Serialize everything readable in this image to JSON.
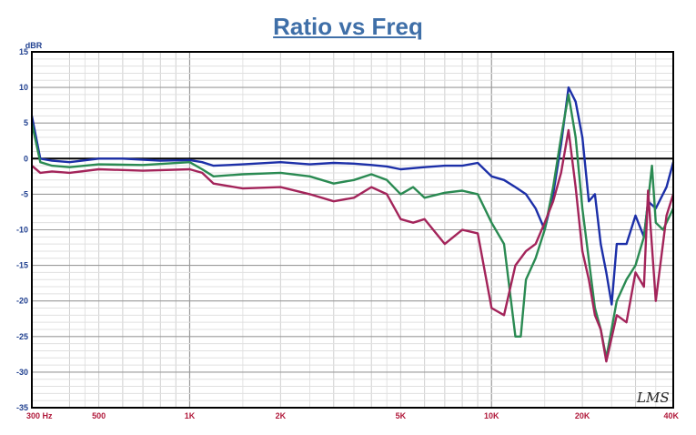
{
  "chart_data": {
    "type": "line",
    "title": "Ratio vs Freq",
    "ylabel": "dBR",
    "xlabel": "",
    "xscale": "log",
    "xlim": [
      300,
      40000
    ],
    "ylim": [
      -35,
      15
    ],
    "yticks": [
      15,
      10,
      5,
      0,
      -5,
      -10,
      -15,
      -20,
      -25,
      -30,
      -35
    ],
    "xticks": [
      {
        "value": 300,
        "label": "300  Hz"
      },
      {
        "value": 500,
        "label": "500"
      },
      {
        "value": 1000,
        "label": "1K"
      },
      {
        "value": 2000,
        "label": "2K"
      },
      {
        "value": 5000,
        "label": "5K"
      },
      {
        "value": 10000,
        "label": "10K"
      },
      {
        "value": 20000,
        "label": "20K"
      },
      {
        "value": 40000,
        "label": "40K"
      }
    ],
    "grid": true,
    "watermark": "LMS",
    "series": [
      {
        "color": "#1c2fa8",
        "points": [
          [
            300,
            6
          ],
          [
            320,
            0
          ],
          [
            350,
            -0.3
          ],
          [
            400,
            -0.5
          ],
          [
            500,
            0
          ],
          [
            600,
            0
          ],
          [
            800,
            -0.3
          ],
          [
            1000,
            -0.2
          ],
          [
            1100,
            -0.5
          ],
          [
            1200,
            -1
          ],
          [
            1500,
            -0.8
          ],
          [
            2000,
            -0.5
          ],
          [
            2500,
            -0.8
          ],
          [
            3000,
            -0.6
          ],
          [
            3500,
            -0.7
          ],
          [
            4000,
            -0.9
          ],
          [
            4500,
            -1.1
          ],
          [
            5000,
            -1.5
          ],
          [
            6000,
            -1.2
          ],
          [
            7000,
            -1
          ],
          [
            8000,
            -1
          ],
          [
            9000,
            -0.6
          ],
          [
            10000,
            -2.5
          ],
          [
            11000,
            -3
          ],
          [
            12000,
            -4
          ],
          [
            13000,
            -5
          ],
          [
            14000,
            -7
          ],
          [
            15000,
            -10
          ],
          [
            16000,
            -5
          ],
          [
            17000,
            2
          ],
          [
            18000,
            10
          ],
          [
            19000,
            8
          ],
          [
            20000,
            3
          ],
          [
            21000,
            -6
          ],
          [
            22000,
            -5
          ],
          [
            23000,
            -12
          ],
          [
            24000,
            -16
          ],
          [
            25000,
            -20.5
          ],
          [
            26000,
            -12
          ],
          [
            28000,
            -12
          ],
          [
            30000,
            -8
          ],
          [
            32000,
            -11
          ],
          [
            33000,
            -6
          ],
          [
            35000,
            -7
          ],
          [
            38000,
            -4
          ],
          [
            40000,
            -0.5
          ]
        ]
      },
      {
        "color": "#2a8a52",
        "points": [
          [
            300,
            5
          ],
          [
            320,
            -0.5
          ],
          [
            350,
            -1
          ],
          [
            400,
            -1.2
          ],
          [
            500,
            -0.8
          ],
          [
            700,
            -0.9
          ],
          [
            1000,
            -0.5
          ],
          [
            1100,
            -1.5
          ],
          [
            1200,
            -2.5
          ],
          [
            1500,
            -2.2
          ],
          [
            2000,
            -2
          ],
          [
            2500,
            -2.5
          ],
          [
            3000,
            -3.5
          ],
          [
            3500,
            -3
          ],
          [
            4000,
            -2.2
          ],
          [
            4500,
            -3
          ],
          [
            5000,
            -5
          ],
          [
            5500,
            -4
          ],
          [
            6000,
            -5.5
          ],
          [
            7000,
            -4.8
          ],
          [
            8000,
            -4.5
          ],
          [
            9000,
            -5
          ],
          [
            10000,
            -9
          ],
          [
            11000,
            -12
          ],
          [
            12000,
            -25
          ],
          [
            12500,
            -25
          ],
          [
            13000,
            -17
          ],
          [
            14000,
            -14
          ],
          [
            15000,
            -10
          ],
          [
            16000,
            -4
          ],
          [
            17000,
            3
          ],
          [
            18000,
            9
          ],
          [
            19000,
            3
          ],
          [
            20000,
            -7
          ],
          [
            22000,
            -21
          ],
          [
            23000,
            -24
          ],
          [
            24000,
            -28
          ],
          [
            26000,
            -20
          ],
          [
            28000,
            -17
          ],
          [
            30000,
            -15
          ],
          [
            32000,
            -11
          ],
          [
            33000,
            -6
          ],
          [
            34000,
            -1
          ],
          [
            35000,
            -9
          ],
          [
            37000,
            -10
          ],
          [
            40000,
            -7
          ]
        ]
      },
      {
        "color": "#a3245a",
        "points": [
          [
            300,
            -1
          ],
          [
            320,
            -2
          ],
          [
            350,
            -1.8
          ],
          [
            400,
            -2
          ],
          [
            500,
            -1.5
          ],
          [
            700,
            -1.7
          ],
          [
            1000,
            -1.5
          ],
          [
            1100,
            -2
          ],
          [
            1200,
            -3.5
          ],
          [
            1500,
            -4.2
          ],
          [
            2000,
            -4
          ],
          [
            2500,
            -5
          ],
          [
            3000,
            -6
          ],
          [
            3500,
            -5.5
          ],
          [
            4000,
            -4
          ],
          [
            4500,
            -5
          ],
          [
            5000,
            -8.5
          ],
          [
            5500,
            -9
          ],
          [
            6000,
            -8.5
          ],
          [
            7000,
            -12
          ],
          [
            8000,
            -10
          ],
          [
            9000,
            -10.5
          ],
          [
            10000,
            -21
          ],
          [
            11000,
            -22
          ],
          [
            12000,
            -15
          ],
          [
            13000,
            -13
          ],
          [
            14000,
            -12
          ],
          [
            15000,
            -9
          ],
          [
            16000,
            -6
          ],
          [
            17000,
            -2
          ],
          [
            18000,
            4
          ],
          [
            19000,
            -4
          ],
          [
            20000,
            -13
          ],
          [
            21000,
            -17
          ],
          [
            22000,
            -22
          ],
          [
            23000,
            -24
          ],
          [
            24000,
            -28.5
          ],
          [
            26000,
            -22
          ],
          [
            28000,
            -23
          ],
          [
            30000,
            -16
          ],
          [
            32000,
            -18
          ],
          [
            33000,
            -4.5
          ],
          [
            35000,
            -20
          ],
          [
            38000,
            -8
          ],
          [
            40000,
            -5
          ]
        ]
      }
    ]
  }
}
